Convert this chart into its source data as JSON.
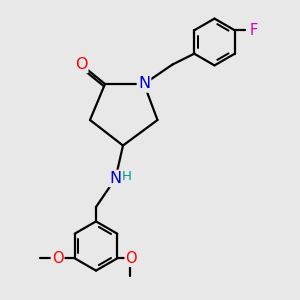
{
  "bg_color": "#e8e8e8",
  "bond_color": "#000000",
  "lw": 1.6,
  "fs": 10.5,
  "colors": {
    "O": "#ff0000",
    "N": "#0000dd",
    "F": "#cc00cc",
    "NH": "#009999",
    "C": "#000000"
  }
}
